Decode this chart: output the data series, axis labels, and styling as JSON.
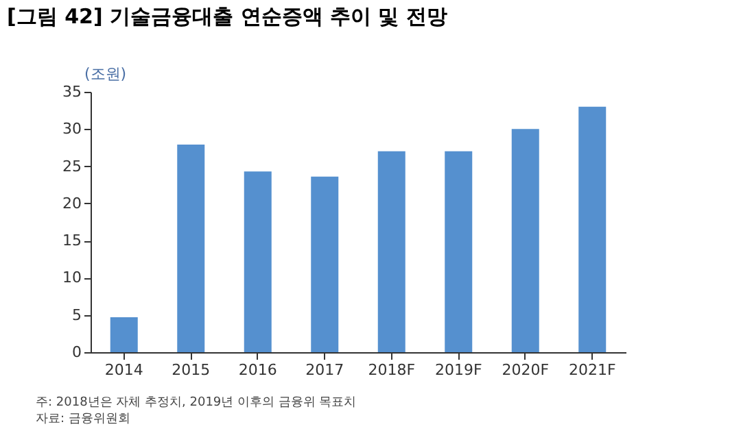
{
  "chart_data": {
    "type": "bar",
    "title": "[그림 42] 기술금융대출 연순증액 추이 및 전망",
    "ylabel": "(조원)",
    "categories": [
      "2014",
      "2015",
      "2016",
      "2017",
      "2018F",
      "2019F",
      "2020F",
      "2021F"
    ],
    "values": [
      4.7,
      27.9,
      24.3,
      23.6,
      27.0,
      27.0,
      30.0,
      33.0
    ],
    "color": "#5590cf",
    "ylim": [
      0,
      35
    ],
    "yticks": [
      0,
      5,
      10,
      15,
      20,
      25,
      30,
      35
    ],
    "grid": false,
    "annotations": [
      "주: 2018년은 자체 추정치, 2019년 이후의 금융위 목표치",
      "자료: 금융위원회"
    ]
  }
}
